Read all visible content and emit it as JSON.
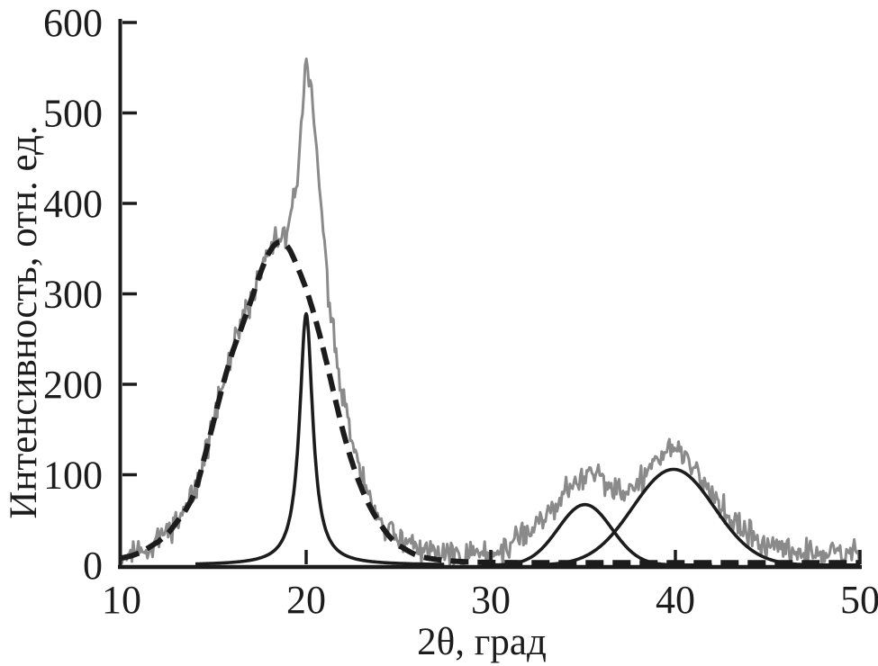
{
  "figure": {
    "background": "#ffffff",
    "axis_color": "#1c1c1c",
    "text_color": "#1c1c1c"
  },
  "chart_data": {
    "type": "line",
    "title": "",
    "xlabel": "2θ, град",
    "ylabel": "Интенсивность, отн. ед.",
    "xlim": [
      10,
      50
    ],
    "ylim": [
      0,
      600
    ],
    "xticks": [
      10,
      20,
      30,
      40,
      50
    ],
    "yticks": [
      0,
      100,
      200,
      300,
      400,
      500,
      600
    ],
    "grid": false,
    "legend": "none",
    "series": [
      {
        "name": "experimental-pattern",
        "description": "noisy measured XRD curve",
        "style": "solid-noisy",
        "color": "#8a8a8a",
        "line_width": 3,
        "noise_amplitude": 10,
        "noise_seed": 11,
        "sample_step": 0.07,
        "points": [
          [
            10,
            10
          ],
          [
            10.5,
            12
          ],
          [
            11,
            16
          ],
          [
            11.5,
            21
          ],
          [
            12,
            28
          ],
          [
            12.5,
            37
          ],
          [
            13,
            48
          ],
          [
            13.5,
            62
          ],
          [
            14,
            84
          ],
          [
            14.5,
            121
          ],
          [
            15,
            160
          ],
          [
            15.5,
            200
          ],
          [
            16,
            236
          ],
          [
            16.5,
            264
          ],
          [
            17,
            293
          ],
          [
            17.5,
            324
          ],
          [
            18,
            350
          ],
          [
            18.3,
            358
          ],
          [
            18.6,
            360
          ],
          [
            18.9,
            366
          ],
          [
            19.2,
            388
          ],
          [
            19.5,
            430
          ],
          [
            19.7,
            474
          ],
          [
            19.85,
            522
          ],
          [
            20,
            566
          ],
          [
            20.15,
            546
          ],
          [
            20.35,
            505
          ],
          [
            20.6,
            446
          ],
          [
            20.85,
            386
          ],
          [
            21.1,
            322
          ],
          [
            21.4,
            266
          ],
          [
            21.8,
            207
          ],
          [
            22.2,
            162
          ],
          [
            22.6,
            124
          ],
          [
            23,
            96
          ],
          [
            23.5,
            71
          ],
          [
            24,
            52
          ],
          [
            24.5,
            38
          ],
          [
            25,
            28
          ],
          [
            25.5,
            23
          ],
          [
            26,
            19
          ],
          [
            27,
            14
          ],
          [
            28,
            12
          ],
          [
            29,
            12
          ],
          [
            30,
            14
          ],
          [
            30.5,
            17
          ],
          [
            31,
            22
          ],
          [
            31.5,
            28
          ],
          [
            32,
            36
          ],
          [
            32.5,
            45
          ],
          [
            33,
            56
          ],
          [
            33.5,
            67
          ],
          [
            34,
            79
          ],
          [
            34.5,
            91
          ],
          [
            35,
            100
          ],
          [
            35.4,
            106
          ],
          [
            35.8,
            100
          ],
          [
            36.2,
            91
          ],
          [
            36.6,
            83
          ],
          [
            37,
            79
          ],
          [
            37.4,
            81
          ],
          [
            37.8,
            88
          ],
          [
            38.2,
            98
          ],
          [
            38.6,
            108
          ],
          [
            39,
            117
          ],
          [
            39.4,
            125
          ],
          [
            39.8,
            129
          ],
          [
            40.2,
            127
          ],
          [
            40.6,
            118
          ],
          [
            41,
            107
          ],
          [
            41.5,
            92
          ],
          [
            42,
            78
          ],
          [
            42.5,
            64
          ],
          [
            43,
            52
          ],
          [
            43.5,
            42
          ],
          [
            44,
            34
          ],
          [
            44.5,
            27
          ],
          [
            45,
            22
          ],
          [
            45.5,
            18
          ],
          [
            46,
            16
          ],
          [
            47,
            14
          ],
          [
            48,
            13
          ],
          [
            49,
            12
          ],
          [
            50,
            12
          ]
        ]
      },
      {
        "name": "amorphous-halo-fit",
        "description": "broad amorphous halo component",
        "style": "dashed",
        "dash": [
          20,
          10
        ],
        "color": "#1c1c1c",
        "line_width": 6,
        "points": [
          [
            10,
            8
          ],
          [
            11,
            14
          ],
          [
            12,
            26
          ],
          [
            12.5,
            35
          ],
          [
            13,
            48
          ],
          [
            13.5,
            62
          ],
          [
            14,
            83
          ],
          [
            14.5,
            120
          ],
          [
            15,
            160
          ],
          [
            15.5,
            200
          ],
          [
            16,
            235
          ],
          [
            16.5,
            263
          ],
          [
            17,
            292
          ],
          [
            17.5,
            322
          ],
          [
            18,
            346
          ],
          [
            18.5,
            357
          ],
          [
            19,
            352
          ],
          [
            19.5,
            331
          ],
          [
            20,
            305
          ],
          [
            20.5,
            272
          ],
          [
            21,
            233
          ],
          [
            21.5,
            190
          ],
          [
            22,
            148
          ],
          [
            22.5,
            113
          ],
          [
            23,
            85
          ],
          [
            23.5,
            63
          ],
          [
            24,
            46
          ],
          [
            24.5,
            32
          ],
          [
            25,
            22
          ],
          [
            26,
            11
          ],
          [
            27,
            6.5
          ],
          [
            28,
            4.5
          ],
          [
            29,
            3.5
          ],
          [
            30,
            3
          ],
          [
            32,
            2.8
          ],
          [
            35,
            2.8
          ],
          [
            40,
            2.8
          ],
          [
            45,
            2.8
          ],
          [
            50,
            2.8
          ]
        ]
      },
      {
        "name": "crystalline-peak-fit-20deg",
        "description": "narrow crystalline reflection at 2theta = 20",
        "style": "solid",
        "color": "#1c1c1c",
        "line_width": 3.6,
        "shape": {
          "type": "lorentzian",
          "center": 20.0,
          "amplitude": 278,
          "hwhm": 0.43
        },
        "range": [
          14,
          27.5
        ]
      },
      {
        "name": "gaussian-peak-fit-35deg",
        "description": "broad fitted peak near 2theta = 35",
        "style": "solid",
        "color": "#1c1c1c",
        "line_width": 3.6,
        "shape": {
          "type": "gaussian",
          "center": 35.1,
          "amplitude": 67,
          "sigma": 1.45
        },
        "range": [
          29.5,
          42
        ]
      },
      {
        "name": "gaussian-peak-fit-40deg",
        "description": "broad fitted peak near 2theta = 40",
        "style": "solid",
        "color": "#1c1c1c",
        "line_width": 3.6,
        "shape": {
          "type": "gaussian",
          "center": 39.9,
          "amplitude": 106,
          "sigma": 2.2
        },
        "range": [
          33,
          50
        ]
      }
    ]
  }
}
